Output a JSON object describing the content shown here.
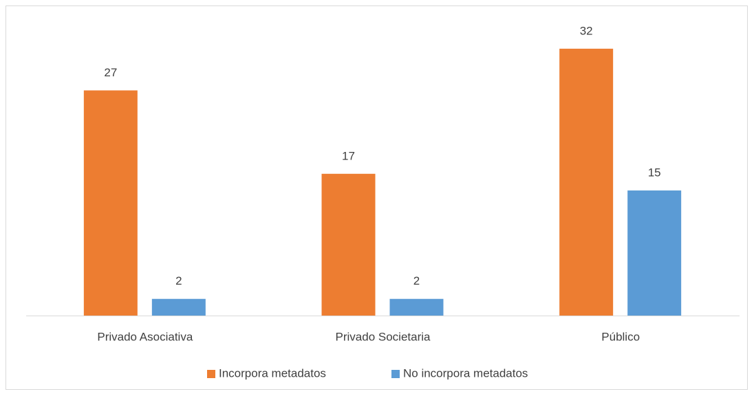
{
  "chart_data": {
    "type": "bar",
    "categories": [
      "Privado Asociativa",
      "Privado Societaria",
      "Público"
    ],
    "series": [
      {
        "name": "Incorpora metadatos",
        "color": "#ed7d31",
        "values": [
          27,
          17,
          32
        ]
      },
      {
        "name": "No incorpora metadatos",
        "color": "#5b9bd5",
        "values": [
          2,
          2,
          15
        ]
      }
    ],
    "legend": "bottom"
  }
}
